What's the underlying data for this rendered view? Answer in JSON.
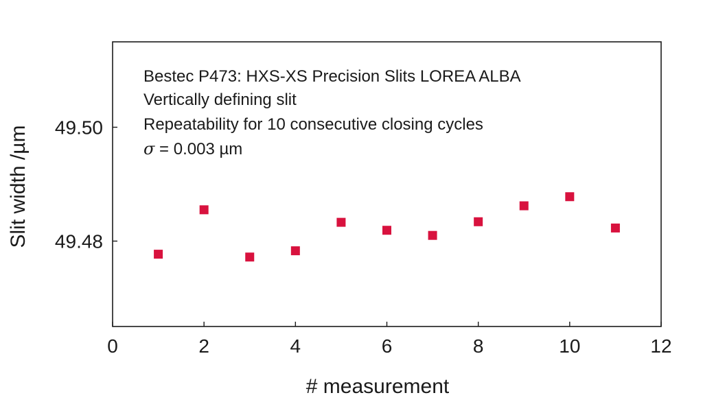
{
  "chart_data": {
    "type": "scatter",
    "title": "",
    "xlabel": "# measurement",
    "ylabel": "Slit width /µm",
    "xlim": [
      0,
      12
    ],
    "ylim": [
      49.465,
      49.515
    ],
    "x_ticks": [
      0,
      2,
      4,
      6,
      8,
      10,
      12
    ],
    "x_tick_labels": [
      "0",
      "2",
      "4",
      "6",
      "8",
      "10",
      "12"
    ],
    "y_ticks": [
      49.48,
      49.5
    ],
    "y_tick_labels": [
      "49.48",
      "49.50"
    ],
    "grid": false,
    "marker_color": "#d8123e",
    "annotations": [
      "Bestec P473: HXS-XS Precision Slits LOREA ALBA",
      "Vertically defining slit",
      "Repeatability for 10 consecutive closing cycles"
    ],
    "sigma_annotation": {
      "symbol": "σ",
      "text": " = 0.003 µm"
    },
    "series": [
      {
        "x": [
          1,
          2,
          3,
          4,
          5,
          6,
          7,
          8,
          9,
          10,
          11
        ],
        "y": [
          49.4777,
          49.4855,
          49.4772,
          49.4783,
          49.4833,
          49.4819,
          49.481,
          49.4834,
          49.4862,
          49.4878,
          49.4823
        ]
      }
    ]
  }
}
